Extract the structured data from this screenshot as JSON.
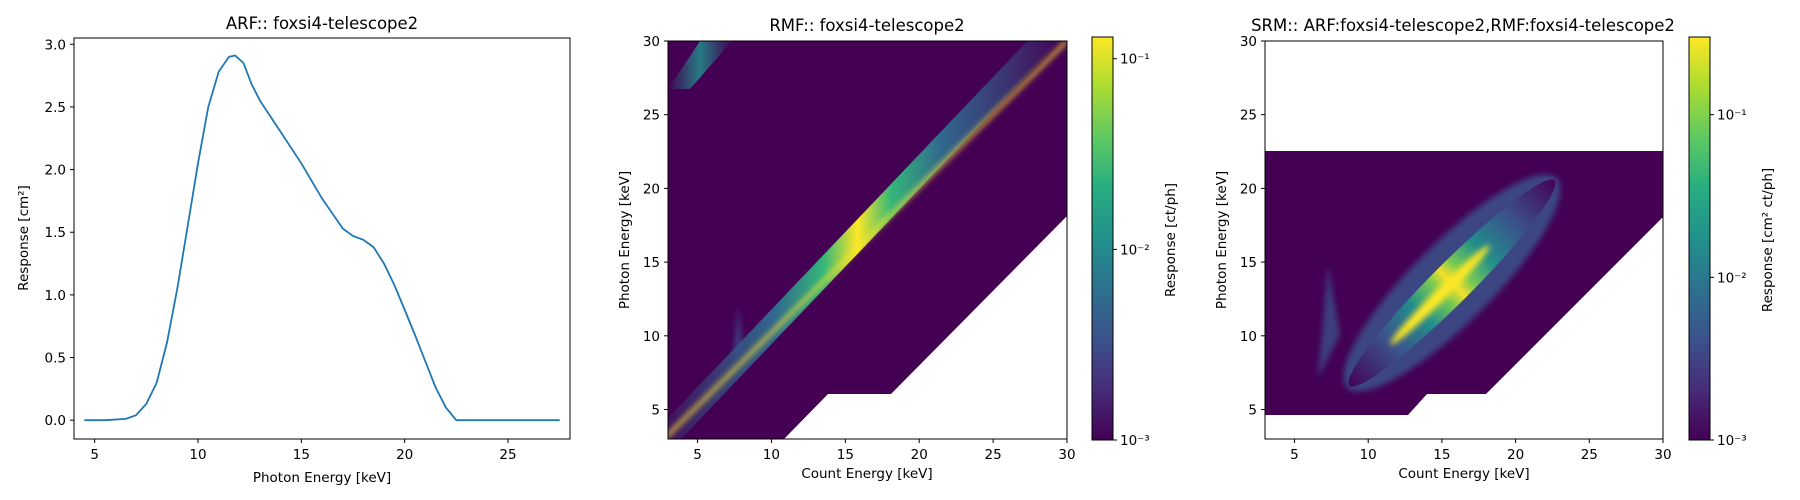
{
  "chart_data": [
    {
      "type": "line",
      "title": "ARF:: foxsi4-telescope2",
      "xlabel": "Photon Energy [keV]",
      "ylabel": "Response [cm²]",
      "xlim": [
        4.0,
        28.0
      ],
      "ylim": [
        -0.15,
        3.05
      ],
      "xticks": [
        5,
        10,
        15,
        20,
        25
      ],
      "yticks": [
        0.0,
        0.5,
        1.0,
        1.5,
        2.0,
        2.5,
        3.0
      ],
      "xtick_labels": [
        "5",
        "10",
        "15",
        "20",
        "25"
      ],
      "ytick_labels": [
        "0.0",
        "0.5",
        "1.0",
        "1.5",
        "2.0",
        "2.5",
        "3.0"
      ],
      "color": "#1f77b4",
      "series": [
        {
          "x": [
            4.5,
            5.5,
            6.5,
            7.0,
            7.5,
            8.0,
            8.5,
            9.0,
            9.5,
            10.0,
            10.5,
            11.0,
            11.5,
            11.8,
            12.2,
            12.6,
            13.0,
            14.0,
            15.0,
            16.0,
            17.0,
            17.5,
            18.0,
            18.5,
            19.0,
            19.5,
            20.0,
            20.5,
            21.0,
            21.5,
            22.0,
            22.5,
            25.0,
            27.5
          ],
          "y": [
            0.0,
            0.0,
            0.01,
            0.04,
            0.13,
            0.3,
            0.62,
            1.05,
            1.55,
            2.05,
            2.5,
            2.78,
            2.9,
            2.91,
            2.85,
            2.68,
            2.55,
            2.3,
            2.05,
            1.77,
            1.53,
            1.47,
            1.44,
            1.38,
            1.25,
            1.08,
            0.88,
            0.68,
            0.47,
            0.26,
            0.1,
            0.0,
            0.0,
            0.0
          ]
        }
      ]
    },
    {
      "type": "heatmap",
      "title": "RMF:: foxsi4-telescope2",
      "xlabel": "Count Energy [keV]",
      "ylabel": "Photon Energy [keV]",
      "xlim": [
        3,
        30
      ],
      "ylim": [
        3,
        30
      ],
      "xticks": [
        5,
        10,
        15,
        20,
        25,
        30
      ],
      "yticks": [
        5,
        10,
        15,
        20,
        25,
        30
      ],
      "xtick_labels": [
        "5",
        "10",
        "15",
        "20",
        "25",
        "30"
      ],
      "ytick_labels": [
        "5",
        "10",
        "15",
        "20",
        "25",
        "30"
      ],
      "colormap": "viridis",
      "colorbar": {
        "scale": "log",
        "range": [
          0.001,
          0.13
        ],
        "ticks": [
          0.001,
          0.01,
          0.1
        ],
        "tick_labels": [
          "10⁻³",
          "10⁻²",
          "10⁻¹"
        ],
        "label": "Response [ct/ph]"
      },
      "features": {
        "diagonal": {
          "x_from": 3,
          "x_to": 30,
          "peak": 0.12
        },
        "escape_feature": {
          "x": [
            3,
            5.2
          ],
          "y": [
            27,
            30
          ]
        },
        "tail": {
          "x": 7.5,
          "y": [
            8,
            11
          ]
        },
        "missing_region": "lower-right"
      }
    },
    {
      "type": "heatmap",
      "title": "SRM:: ARF:foxsi4-telescope2,RMF:foxsi4-telescope2",
      "xlabel": "Count Energy [keV]",
      "ylabel": "Photon Energy [keV]",
      "xlim": [
        3,
        30
      ],
      "ylim": [
        3,
        30
      ],
      "xticks": [
        5,
        10,
        15,
        20,
        25,
        30
      ],
      "yticks": [
        5,
        10,
        15,
        20,
        25,
        30
      ],
      "xtick_labels": [
        "5",
        "10",
        "15",
        "20",
        "25",
        "30"
      ],
      "ytick_labels": [
        "5",
        "10",
        "15",
        "20",
        "25",
        "30"
      ],
      "colormap": "viridis",
      "colorbar": {
        "scale": "log",
        "range": [
          0.001,
          0.3
        ],
        "ticks": [
          0.001,
          0.01,
          0.1
        ],
        "tick_labels": [
          "10⁻³",
          "10⁻²",
          "10⁻¹"
        ],
        "label": "Response [cm² ct/ph]"
      },
      "features": {
        "photon_energy_range": [
          4.5,
          22.5
        ],
        "diagonal": {
          "x_from": 7,
          "x_to": 22.5,
          "peak": 0.3
        },
        "tail": {
          "x": 7.2,
          "y": [
            8,
            14
          ]
        },
        "missing_region": "lower-right"
      }
    }
  ]
}
